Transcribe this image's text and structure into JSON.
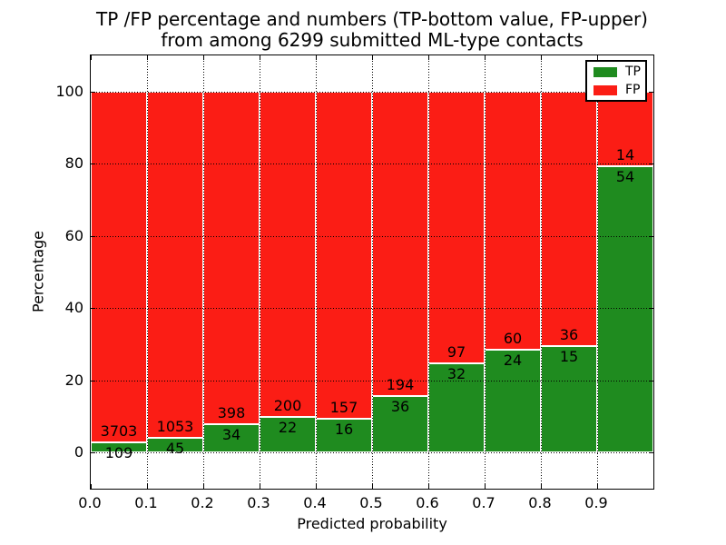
{
  "title": {
    "line1": "TP /FP percentage and numbers (TP-bottom value, FP-upper)",
    "line2": "from among 6299 submitted ML-type contacts"
  },
  "colors": {
    "tp_green": "#1f8b1f",
    "fp_red": "#fb1d15",
    "bar_edge": "#ffffff",
    "grid": "#000000",
    "background": "#ffffff",
    "legend_border": "#000000"
  },
  "chart_data": {
    "type": "bar",
    "stacked": true,
    "normalized_to_percent": true,
    "title": "TP /FP percentage and numbers (TP-bottom value, FP-upper)\nfrom among 6299 submitted ML-type contacts",
    "xlabel": "Predicted probability",
    "ylabel": "Percentage",
    "xlim": [
      0.0,
      1.0
    ],
    "ylim": [
      -10,
      110
    ],
    "x_tick_values": [
      0.0,
      0.1,
      0.2,
      0.3,
      0.4,
      0.5,
      0.6,
      0.7,
      0.8,
      0.9
    ],
    "x_tick_labels": [
      "0.0",
      "0.1",
      "0.2",
      "0.3",
      "0.4",
      "0.5",
      "0.6",
      "0.7",
      "0.8",
      "0.9"
    ],
    "y_tick_values": [
      0,
      20,
      40,
      60,
      80,
      100
    ],
    "y_tick_labels": [
      "0",
      "20",
      "40",
      "60",
      "80",
      "100"
    ],
    "grid": true,
    "grid_style": "dotted",
    "bin_width": 0.1,
    "total_contacts": 6299,
    "bins": [
      {
        "x_start": 0.0,
        "tp": 109,
        "fp": 3703
      },
      {
        "x_start": 0.1,
        "tp": 45,
        "fp": 1053
      },
      {
        "x_start": 0.2,
        "tp": 34,
        "fp": 398
      },
      {
        "x_start": 0.3,
        "tp": 22,
        "fp": 200
      },
      {
        "x_start": 0.4,
        "tp": 16,
        "fp": 157
      },
      {
        "x_start": 0.5,
        "tp": 36,
        "fp": 194
      },
      {
        "x_start": 0.6,
        "tp": 32,
        "fp": 97
      },
      {
        "x_start": 0.7,
        "tp": 24,
        "fp": 60
      },
      {
        "x_start": 0.8,
        "tp": 15,
        "fp": 36
      },
      {
        "x_start": 0.9,
        "tp": 54,
        "fp": 14
      }
    ],
    "series": [
      {
        "name": "TP",
        "color": "#1f8b1f",
        "role": "bottom"
      },
      {
        "name": "FP",
        "color": "#fb1d15",
        "role": "upper"
      }
    ],
    "legend": {
      "position": "upper right",
      "entries": [
        "TP",
        "FP"
      ]
    },
    "values_note": "each bar stacked to 100%; in-bar labels show raw counts (TP below boundary, FP above)"
  }
}
